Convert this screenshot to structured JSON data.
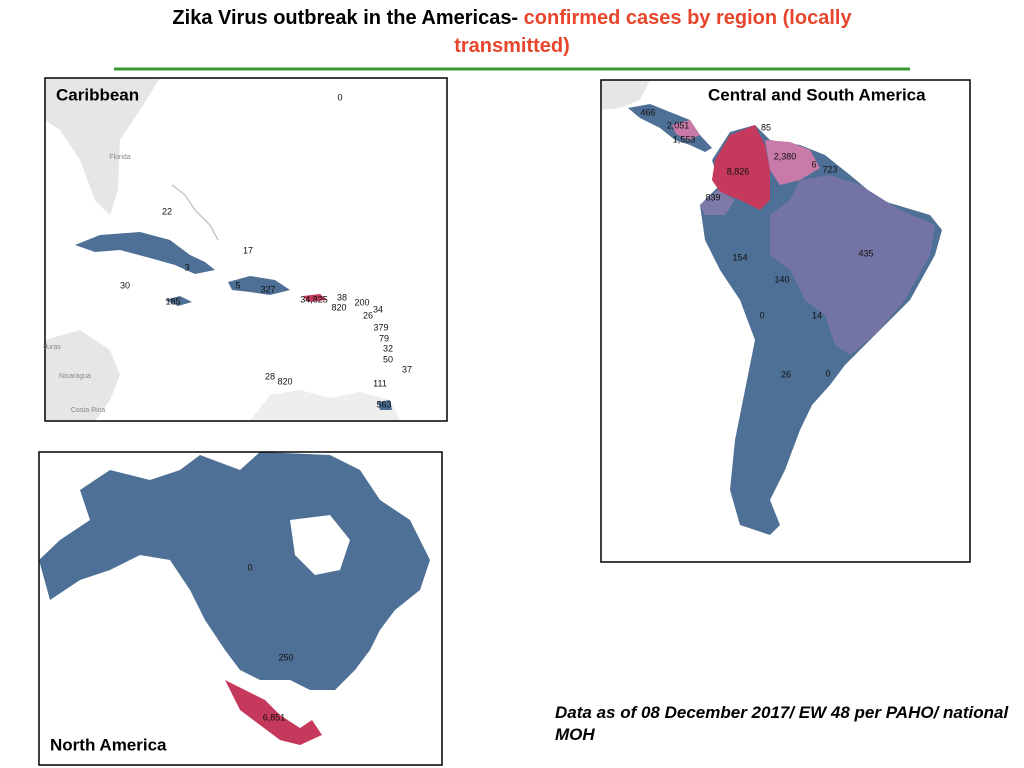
{
  "title": {
    "lead": "Zika Virus outbreak in the Americas-",
    "highlight": "confirmed cases by region (locally transmitted)"
  },
  "maps": [
    {
      "title": "Caribbean",
      "labels": [
        "0",
        "22",
        "17",
        "3",
        "30",
        "5",
        "327",
        "185",
        "34,825",
        "38",
        "820",
        "200",
        "34",
        "26",
        "379",
        "79",
        "32",
        "50",
        "37",
        "28",
        "820",
        "111",
        "563"
      ],
      "place_names": [
        "Florida",
        "Nicaragua",
        "Costa Rica",
        "duras"
      ]
    },
    {
      "title": "Central and South America",
      "labels": [
        "466",
        "2,051",
        "85",
        "1,553",
        "2,380",
        "6",
        "723",
        "8,826",
        "839",
        "435",
        "154",
        "140",
        "0",
        "14",
        "26",
        "0"
      ]
    },
    {
      "title": "North America",
      "labels": [
        "0",
        "250",
        "6,851"
      ]
    }
  ],
  "note": "Data as of 08 December 2017/ EW 48 per PAHO/ national MOH"
}
